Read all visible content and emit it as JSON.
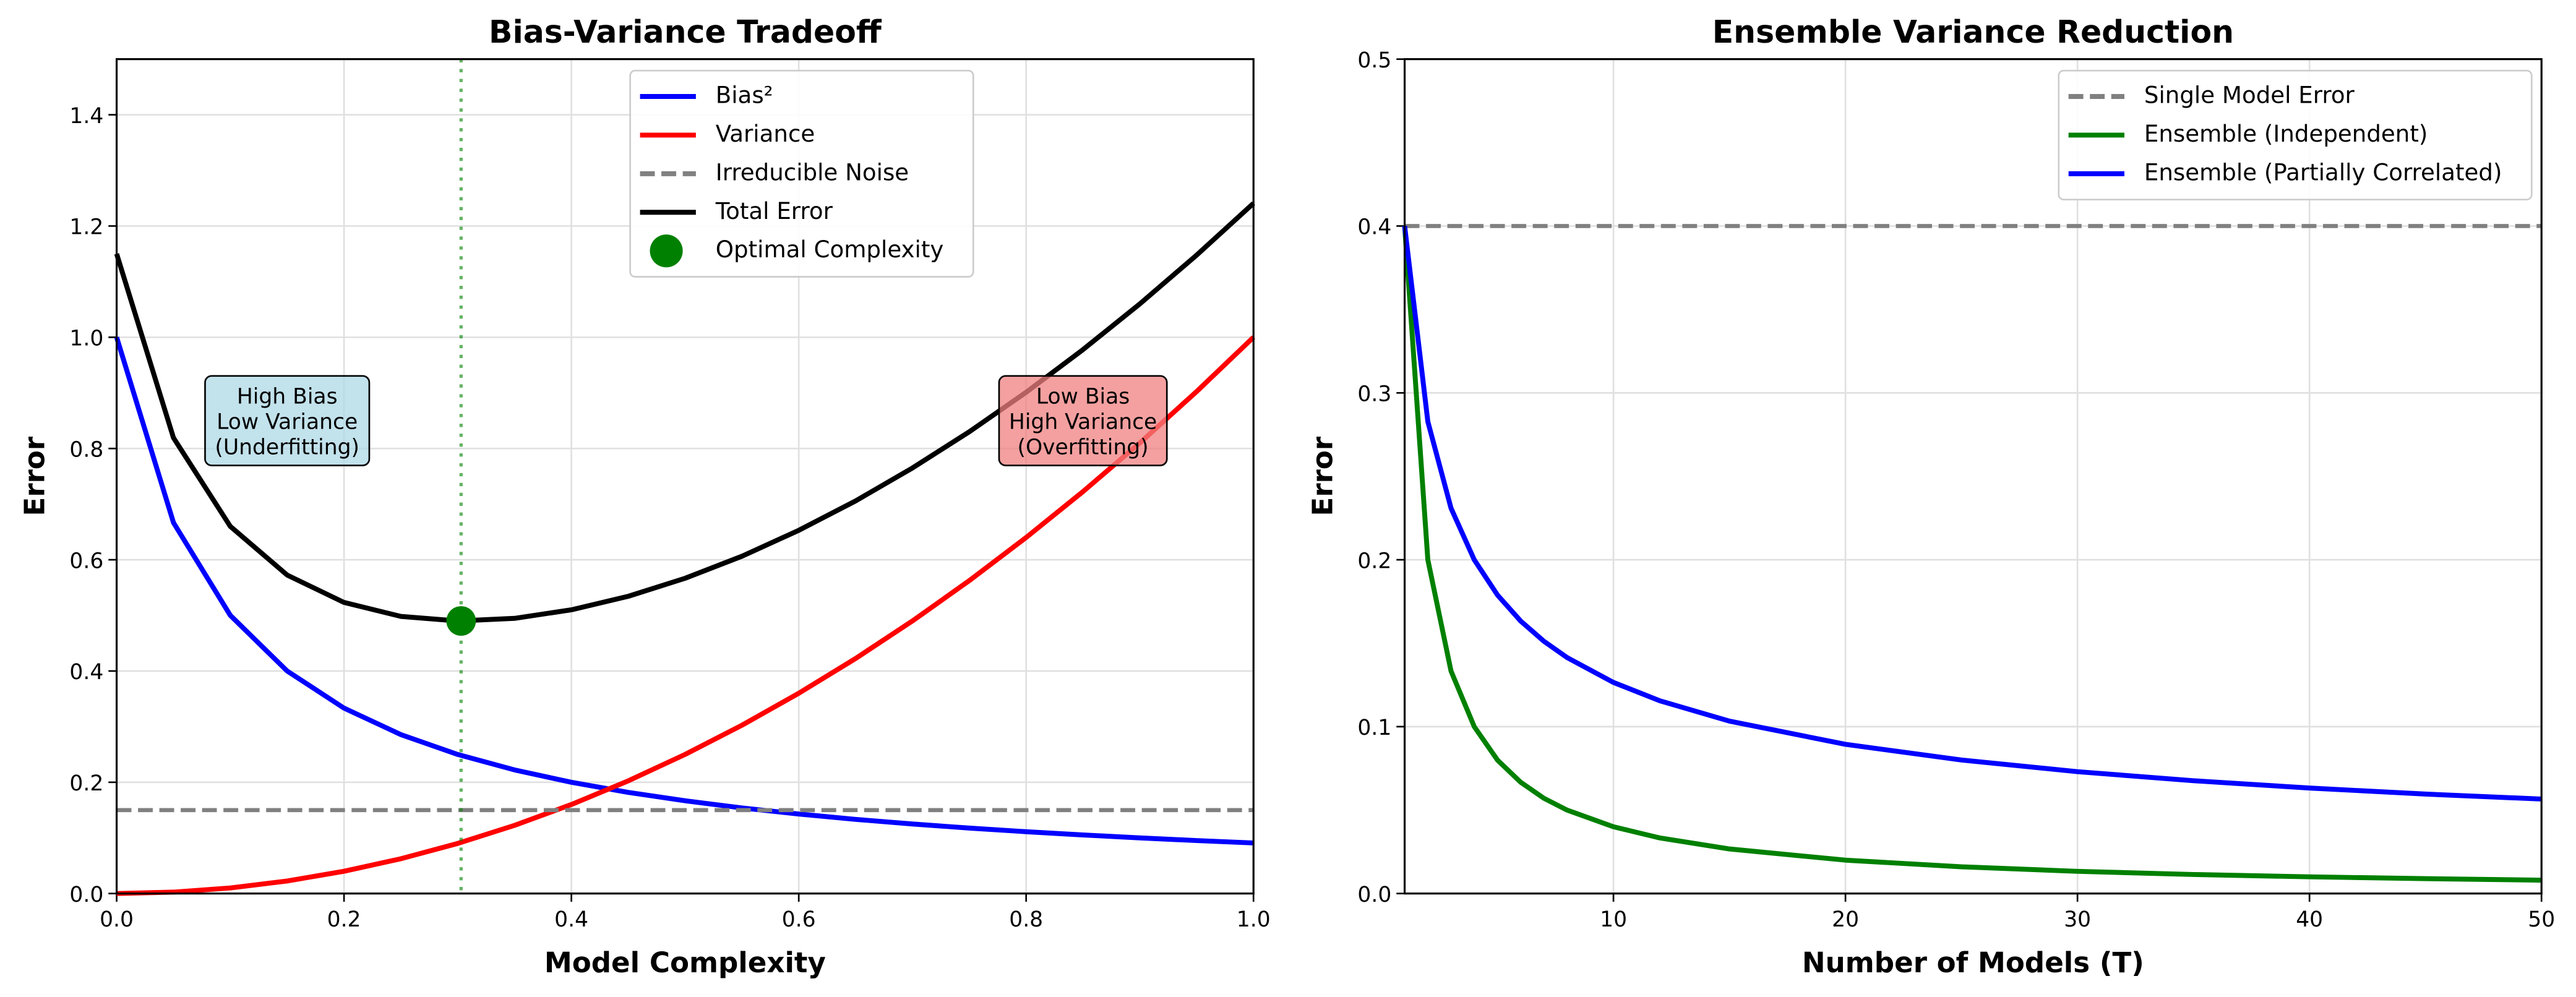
{
  "chart_data": [
    {
      "type": "line",
      "title": "Bias-Variance Tradeoff",
      "xlabel": "Model Complexity",
      "ylabel": "Error",
      "x": [
        0,
        0.05,
        0.1,
        0.15,
        0.2,
        0.25,
        0.3,
        0.35,
        0.4,
        0.45,
        0.5,
        0.55,
        0.6,
        0.65,
        0.7,
        0.75,
        0.8,
        0.85,
        0.9,
        0.95,
        1.0
      ],
      "series": [
        {
          "name": "Bias²",
          "color": "#0000ff",
          "style": "solid",
          "values": [
            1,
            0.6667,
            0.5,
            0.4,
            0.3333,
            0.2857,
            0.25,
            0.2222,
            0.2,
            0.1818,
            0.1667,
            0.1538,
            0.1429,
            0.1333,
            0.125,
            0.1176,
            0.1111,
            0.1053,
            0.1,
            0.0952,
            0.0909
          ]
        },
        {
          "name": "Variance",
          "color": "#ff0000",
          "style": "solid",
          "values": [
            0,
            0.0025,
            0.01,
            0.0225,
            0.04,
            0.0625,
            0.09,
            0.1225,
            0.16,
            0.2025,
            0.25,
            0.3025,
            0.36,
            0.4225,
            0.49,
            0.5625,
            0.64,
            0.7225,
            0.81,
            0.9025,
            1.0
          ]
        },
        {
          "name": "Irreducible Noise",
          "color": "#808080",
          "style": "dashed",
          "values": [
            0.15,
            0.15,
            0.15,
            0.15,
            0.15,
            0.15,
            0.15,
            0.15,
            0.15,
            0.15,
            0.15,
            0.15,
            0.15,
            0.15,
            0.15,
            0.15,
            0.15,
            0.15,
            0.15,
            0.15,
            0.15
          ]
        },
        {
          "name": "Total Error",
          "color": "#000000",
          "style": "solid",
          "values": [
            1.15,
            0.8192,
            0.66,
            0.5725,
            0.5233,
            0.4982,
            0.49,
            0.4947,
            0.51,
            0.5343,
            0.5667,
            0.6063,
            0.6529,
            0.7058,
            0.765,
            0.8301,
            0.9011,
            0.9778,
            1.06,
            1.1477,
            1.2409
          ]
        },
        {
          "name": "Optimal Complexity",
          "color": "#008000",
          "style": "marker",
          "guide": true,
          "x": [
            0.303
          ],
          "values": [
            0.49
          ]
        }
      ],
      "xlim": [
        0,
        1
      ],
      "xticks": [
        {
          "value": 0,
          "label": "0.0"
        },
        0.2,
        0.4,
        0.6,
        0.8,
        {
          "value": 1,
          "label": "1.0"
        }
      ],
      "ylim": [
        0,
        1.5
      ],
      "yticks": [
        {
          "value": 0,
          "label": "0.0"
        },
        0.2,
        0.4,
        0.6,
        0.8,
        {
          "value": 1,
          "label": "1.0"
        },
        1.2,
        1.4
      ],
      "grid": true,
      "legend": "upper center",
      "annotations": [
        {
          "text": [
            "High Bias",
            "Low Variance",
            "(Underfitting)"
          ],
          "x": 0.15,
          "y": 0.85,
          "color": "#add8e6"
        },
        {
          "text": [
            "Low Bias",
            "High Variance",
            "(Overfitting)"
          ],
          "x": 0.85,
          "y": 0.85,
          "color": "#f08080"
        }
      ]
    },
    {
      "type": "line",
      "title": "Ensemble Variance Reduction",
      "xlabel": "Number of Models (T)",
      "ylabel": "Error",
      "x": [
        1,
        2,
        3,
        4,
        5,
        6,
        7,
        8,
        10,
        12,
        15,
        20,
        25,
        30,
        35,
        40,
        45,
        50
      ],
      "series": [
        {
          "name": "Single Model Error",
          "color": "#808080",
          "style": "dashed",
          "values": [
            0.4,
            0.4,
            0.4,
            0.4,
            0.4,
            0.4,
            0.4,
            0.4,
            0.4,
            0.4,
            0.4,
            0.4,
            0.4,
            0.4,
            0.4,
            0.4,
            0.4,
            0.4
          ]
        },
        {
          "name": "Ensemble (Independent)",
          "color": "#008000",
          "style": "solid",
          "values": [
            0.4,
            0.2,
            0.1333,
            0.1,
            0.08,
            0.0667,
            0.0571,
            0.05,
            0.04,
            0.0333,
            0.0267,
            0.02,
            0.016,
            0.0133,
            0.0114,
            0.01,
            0.0089,
            0.008
          ]
        },
        {
          "name": "Ensemble (Partially Correlated)",
          "color": "#0000ff",
          "style": "solid",
          "values": [
            0.4,
            0.2828,
            0.2309,
            0.2,
            0.1789,
            0.1633,
            0.1512,
            0.1414,
            0.1265,
            0.1155,
            0.1033,
            0.0894,
            0.08,
            0.073,
            0.0676,
            0.0632,
            0.0596,
            0.0566
          ]
        }
      ],
      "xlim": [
        1,
        50
      ],
      "xticks": [
        10,
        20,
        30,
        40,
        50
      ],
      "ylim": [
        0,
        0.5
      ],
      "yticks": [
        {
          "value": 0,
          "label": "0.0"
        },
        0.1,
        0.2,
        0.3,
        0.4,
        0.5
      ],
      "grid": true,
      "legend": "upper right"
    }
  ]
}
